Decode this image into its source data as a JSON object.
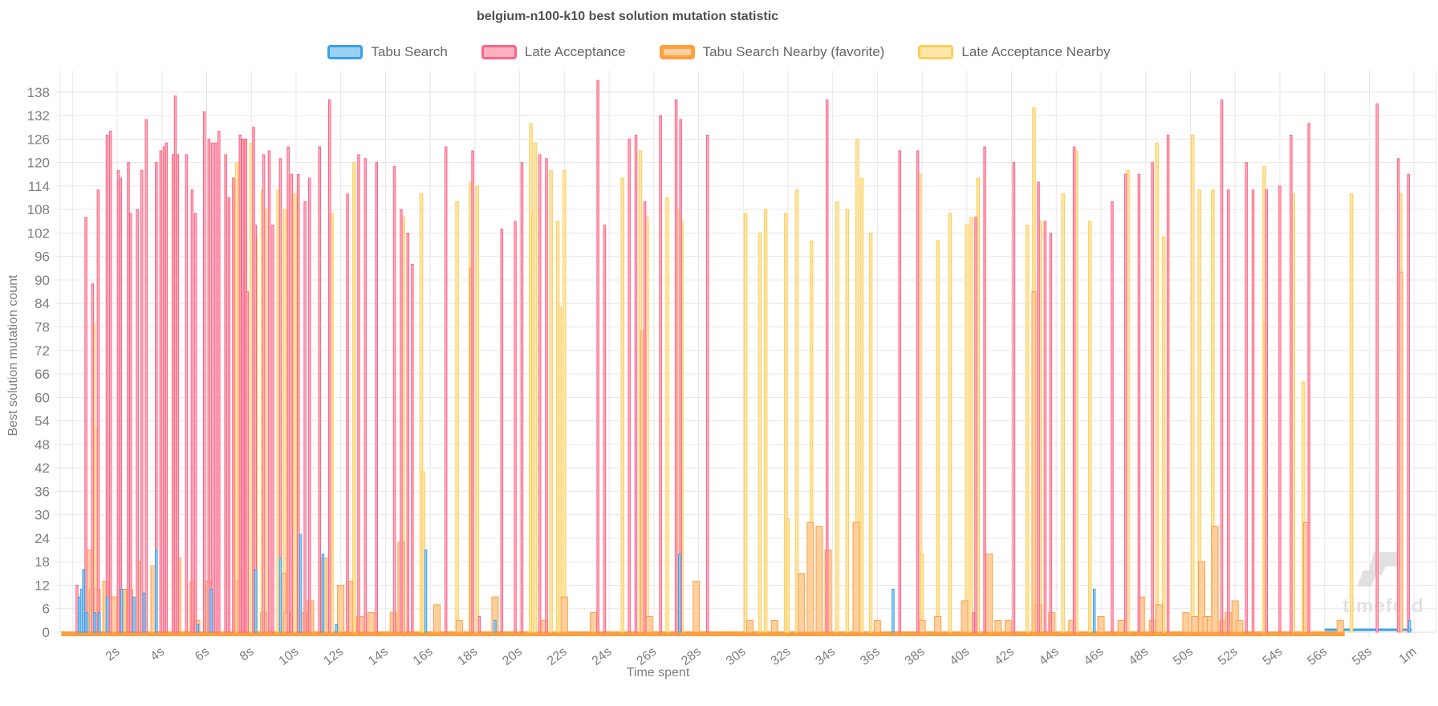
{
  "title": "belgium-n100-k10 best solution mutation statistic",
  "axes": {
    "x_label": "Time spent",
    "y_label": "Best solution mutation count",
    "y_ticks": [
      0,
      6,
      12,
      18,
      24,
      30,
      36,
      42,
      48,
      54,
      60,
      66,
      72,
      78,
      84,
      90,
      96,
      102,
      108,
      114,
      120,
      126,
      132,
      138
    ],
    "x_ticks": [
      {
        "t": 0,
        "label": ""
      },
      {
        "t": 2,
        "label": "2s"
      },
      {
        "t": 4,
        "label": "4s"
      },
      {
        "t": 6,
        "label": "6s"
      },
      {
        "t": 8,
        "label": "8s"
      },
      {
        "t": 10,
        "label": "10s"
      },
      {
        "t": 12,
        "label": "12s"
      },
      {
        "t": 14,
        "label": "14s"
      },
      {
        "t": 16,
        "label": "16s"
      },
      {
        "t": 18,
        "label": "18s"
      },
      {
        "t": 20,
        "label": "20s"
      },
      {
        "t": 22,
        "label": "22s"
      },
      {
        "t": 24,
        "label": "24s"
      },
      {
        "t": 26,
        "label": "26s"
      },
      {
        "t": 28,
        "label": "28s"
      },
      {
        "t": 30,
        "label": "30s"
      },
      {
        "t": 32,
        "label": "32s"
      },
      {
        "t": 34,
        "label": "34s"
      },
      {
        "t": 36,
        "label": "36s"
      },
      {
        "t": 38,
        "label": "38s"
      },
      {
        "t": 40,
        "label": "40s"
      },
      {
        "t": 42,
        "label": "42s"
      },
      {
        "t": 44,
        "label": "44s"
      },
      {
        "t": 46,
        "label": "46s"
      },
      {
        "t": 48,
        "label": "48s"
      },
      {
        "t": 50,
        "label": "50s"
      },
      {
        "t": 52,
        "label": "52s"
      },
      {
        "t": 54,
        "label": "54s"
      },
      {
        "t": 56,
        "label": "56s"
      },
      {
        "t": 58,
        "label": "58s"
      },
      {
        "t": 60,
        "label": "1m"
      }
    ]
  },
  "colors": {
    "grid": "#e7e7e7",
    "tick_text": "#7e7e7e",
    "title_text": "#4f4f4f",
    "legend_text": "#666666",
    "watermark": "#dcdcdc"
  },
  "watermark": {
    "text": "timefold"
  },
  "chart_data": {
    "type": "bar",
    "title": "belgium-n100-k10 best solution mutation statistic",
    "xlabel": "Time spent",
    "ylabel": "Best solution mutation count",
    "x_unit": "seconds",
    "xlim": [
      -0.55,
      61.0
    ],
    "ylim": [
      0,
      143.5
    ],
    "grid": true,
    "legend_position": "top",
    "series": [
      {
        "name": "Tabu Search",
        "key": "tabu-search",
        "border": "#36A2EB",
        "fill": "#9BD0F5",
        "favorite": false,
        "points": [
          [
            0.3,
            9
          ],
          [
            0.4,
            11
          ],
          [
            0.5,
            16
          ],
          [
            0.65,
            5
          ],
          [
            1.0,
            5
          ],
          [
            1.2,
            5
          ],
          [
            1.55,
            9
          ],
          [
            2.2,
            11
          ],
          [
            2.75,
            9
          ],
          [
            3.2,
            10
          ],
          [
            3.75,
            21
          ],
          [
            5.6,
            2
          ],
          [
            6.2,
            11
          ],
          [
            8.2,
            16
          ],
          [
            9.3,
            19
          ],
          [
            10.2,
            25
          ],
          [
            11.2,
            20
          ],
          [
            11.8,
            2
          ],
          [
            15.8,
            21
          ],
          [
            18.9,
            3
          ],
          [
            27.15,
            20
          ],
          [
            36.7,
            11
          ],
          [
            45.7,
            11
          ],
          [
            59.8,
            3
          ]
        ]
      },
      {
        "name": "Late Acceptance",
        "key": "late-acceptance",
        "border": "#FF6384",
        "fill": "#FFB1C1",
        "favorite": false,
        "points": [
          [
            0.2,
            12
          ],
          [
            0.6,
            106
          ],
          [
            0.9,
            89
          ],
          [
            1.15,
            113
          ],
          [
            1.55,
            127
          ],
          [
            1.7,
            128
          ],
          [
            2.05,
            118
          ],
          [
            2.15,
            116
          ],
          [
            2.5,
            120
          ],
          [
            2.6,
            107
          ],
          [
            2.9,
            108
          ],
          [
            3.1,
            118
          ],
          [
            3.3,
            131
          ],
          [
            3.75,
            120
          ],
          [
            3.95,
            123
          ],
          [
            4.1,
            124
          ],
          [
            4.2,
            125
          ],
          [
            4.5,
            122
          ],
          [
            4.6,
            137
          ],
          [
            4.7,
            122
          ],
          [
            5.1,
            122
          ],
          [
            5.35,
            113
          ],
          [
            5.5,
            107
          ],
          [
            5.9,
            133
          ],
          [
            6.1,
            126
          ],
          [
            6.25,
            125
          ],
          [
            6.4,
            125
          ],
          [
            6.55,
            128
          ],
          [
            6.85,
            122
          ],
          [
            7.0,
            111
          ],
          [
            7.2,
            116
          ],
          [
            7.5,
            127
          ],
          [
            7.62,
            126
          ],
          [
            7.75,
            126
          ],
          [
            7.82,
            87
          ],
          [
            8.1,
            129
          ],
          [
            8.18,
            104
          ],
          [
            8.55,
            122
          ],
          [
            8.8,
            123
          ],
          [
            8.96,
            104
          ],
          [
            9.3,
            121
          ],
          [
            9.65,
            124
          ],
          [
            9.8,
            117
          ],
          [
            10.1,
            117
          ],
          [
            10.4,
            110
          ],
          [
            10.6,
            116
          ],
          [
            11.05,
            124
          ],
          [
            11.5,
            136
          ],
          [
            12.3,
            112
          ],
          [
            12.8,
            122
          ],
          [
            13.1,
            121
          ],
          [
            13.6,
            120
          ],
          [
            14.4,
            119
          ],
          [
            14.7,
            108
          ],
          [
            15.0,
            102
          ],
          [
            15.2,
            94
          ],
          [
            16.7,
            124
          ],
          [
            17.9,
            123
          ],
          [
            18.2,
            4
          ],
          [
            19.2,
            103
          ],
          [
            19.8,
            105
          ],
          [
            20.1,
            120
          ],
          [
            20.9,
            122
          ],
          [
            21.2,
            121
          ],
          [
            23.5,
            141
          ],
          [
            23.8,
            104
          ],
          [
            24.9,
            126
          ],
          [
            25.2,
            127
          ],
          [
            25.6,
            110
          ],
          [
            26.3,
            132
          ],
          [
            27.0,
            136
          ],
          [
            27.2,
            131
          ],
          [
            28.4,
            127
          ],
          [
            33.75,
            136
          ],
          [
            37.0,
            123
          ],
          [
            37.8,
            123
          ],
          [
            40.3,
            5
          ],
          [
            40.4,
            106
          ],
          [
            40.8,
            124
          ],
          [
            42.1,
            120
          ],
          [
            43.2,
            115
          ],
          [
            43.5,
            105
          ],
          [
            43.75,
            102
          ],
          [
            44.8,
            124
          ],
          [
            46.5,
            110
          ],
          [
            47.1,
            117
          ],
          [
            47.7,
            117
          ],
          [
            48.3,
            120
          ],
          [
            49.0,
            127
          ],
          [
            51.4,
            136
          ],
          [
            51.7,
            113
          ],
          [
            52.5,
            120
          ],
          [
            52.8,
            113
          ],
          [
            53.4,
            113
          ],
          [
            54.0,
            114
          ],
          [
            54.5,
            127
          ],
          [
            55.3,
            130
          ],
          [
            58.35,
            135
          ],
          [
            59.3,
            121
          ],
          [
            59.75,
            117
          ]
        ]
      },
      {
        "name": "Tabu Search Nearby (favorite)",
        "key": "tabu-search-nearby",
        "border": "#FF9F40",
        "fill": "#FFCF9F",
        "favorite": true,
        "points": [
          [
            0.6,
            4
          ],
          [
            0.75,
            21
          ],
          [
            0.9,
            11
          ],
          [
            1.1,
            11
          ],
          [
            1.5,
            13
          ],
          [
            1.7,
            9
          ],
          [
            1.85,
            9
          ],
          [
            2.4,
            11
          ],
          [
            2.55,
            11
          ],
          [
            3.0,
            18
          ],
          [
            3.65,
            17
          ],
          [
            4.7,
            19
          ],
          [
            5.4,
            13
          ],
          [
            5.55,
            3
          ],
          [
            6.1,
            13
          ],
          [
            7.5,
            13
          ],
          [
            7.65,
            3
          ],
          [
            8.55,
            5
          ],
          [
            9.4,
            15
          ],
          [
            9.6,
            5
          ],
          [
            10.35,
            5
          ],
          [
            10.65,
            8
          ],
          [
            11.25,
            19
          ],
          [
            12.0,
            12
          ],
          [
            12.4,
            13
          ],
          [
            12.85,
            4
          ],
          [
            13.35,
            5
          ],
          [
            14.35,
            5
          ],
          [
            14.7,
            23
          ],
          [
            16.3,
            7
          ],
          [
            17.3,
            3
          ],
          [
            17.85,
            93
          ],
          [
            18.9,
            9
          ],
          [
            21.1,
            3
          ],
          [
            22.0,
            9
          ],
          [
            23.3,
            5
          ],
          [
            25.5,
            77
          ],
          [
            25.8,
            4
          ],
          [
            27.9,
            13
          ],
          [
            30.3,
            3
          ],
          [
            31.4,
            3
          ],
          [
            32.6,
            15
          ],
          [
            33.0,
            28
          ],
          [
            33.4,
            27
          ],
          [
            33.8,
            21
          ],
          [
            35.05,
            28
          ],
          [
            36.0,
            3
          ],
          [
            38.0,
            3
          ],
          [
            38.7,
            4
          ],
          [
            39.9,
            8
          ],
          [
            41.0,
            20
          ],
          [
            41.4,
            3
          ],
          [
            41.85,
            3
          ],
          [
            43.0,
            87
          ],
          [
            43.2,
            7
          ],
          [
            43.8,
            5
          ],
          [
            44.7,
            3
          ],
          [
            46.0,
            4
          ],
          [
            46.9,
            3
          ],
          [
            47.8,
            9
          ],
          [
            48.3,
            3
          ],
          [
            48.6,
            7
          ],
          [
            49.8,
            5
          ],
          [
            50.2,
            4
          ],
          [
            50.5,
            18
          ],
          [
            50.7,
            4
          ],
          [
            50.9,
            4
          ],
          [
            51.1,
            27
          ],
          [
            51.45,
            3
          ],
          [
            51.7,
            5
          ],
          [
            52.0,
            8
          ],
          [
            52.2,
            3
          ],
          [
            55.2,
            28
          ],
          [
            56.7,
            3
          ],
          [
            59.4,
            92
          ]
        ]
      },
      {
        "name": "Late Acceptance Nearby",
        "key": "late-acceptance-nearby",
        "border": "#FFCD56",
        "fill": "#FFE6AA",
        "favorite": false,
        "points": [
          [
            0.95,
            79
          ],
          [
            1.05,
            52
          ],
          [
            7.35,
            120
          ],
          [
            7.45,
            110
          ],
          [
            8.0,
            125
          ],
          [
            8.2,
            101
          ],
          [
            8.5,
            113
          ],
          [
            8.62,
            108
          ],
          [
            9.2,
            113
          ],
          [
            9.5,
            108
          ],
          [
            9.95,
            112
          ],
          [
            11.6,
            107
          ],
          [
            12.6,
            120
          ],
          [
            14.8,
            106
          ],
          [
            15.6,
            112
          ],
          [
            15.7,
            41
          ],
          [
            17.2,
            110
          ],
          [
            17.8,
            115
          ],
          [
            18.1,
            114
          ],
          [
            20.5,
            130
          ],
          [
            20.6,
            107
          ],
          [
            20.7,
            125
          ],
          [
            21.4,
            118
          ],
          [
            21.7,
            105
          ],
          [
            21.8,
            83
          ],
          [
            22.0,
            118
          ],
          [
            24.6,
            116
          ],
          [
            25.4,
            123
          ],
          [
            25.7,
            106
          ],
          [
            26.6,
            111
          ],
          [
            27.1,
            108
          ],
          [
            27.25,
            105
          ],
          [
            30.1,
            107
          ],
          [
            30.75,
            102
          ],
          [
            31.0,
            108
          ],
          [
            31.9,
            107
          ],
          [
            32.0,
            29
          ],
          [
            32.4,
            113
          ],
          [
            33.05,
            100
          ],
          [
            34.2,
            110
          ],
          [
            34.65,
            108
          ],
          [
            35.1,
            126
          ],
          [
            35.3,
            116
          ],
          [
            35.7,
            102
          ],
          [
            37.9,
            117
          ],
          [
            38.0,
            20
          ],
          [
            38.7,
            100
          ],
          [
            39.25,
            107
          ],
          [
            40.0,
            104
          ],
          [
            40.2,
            106
          ],
          [
            40.5,
            116
          ],
          [
            42.7,
            104
          ],
          [
            43.0,
            134
          ],
          [
            43.3,
            105
          ],
          [
            44.3,
            112
          ],
          [
            44.9,
            123
          ],
          [
            45.5,
            105
          ],
          [
            47.2,
            118
          ],
          [
            48.5,
            125
          ],
          [
            48.8,
            101
          ],
          [
            50.1,
            127
          ],
          [
            50.4,
            113
          ],
          [
            51.0,
            113
          ],
          [
            53.3,
            119
          ],
          [
            53.35,
            79
          ],
          [
            54.6,
            112
          ],
          [
            55.05,
            64
          ],
          [
            57.2,
            112
          ],
          [
            59.4,
            112
          ]
        ]
      }
    ],
    "baseline_segments": [
      {
        "key": "tabu-search",
        "from": 56.0,
        "to": 59.9
      },
      {
        "key": "tabu-search-nearby",
        "from": -0.5,
        "to": 56.9
      }
    ]
  }
}
